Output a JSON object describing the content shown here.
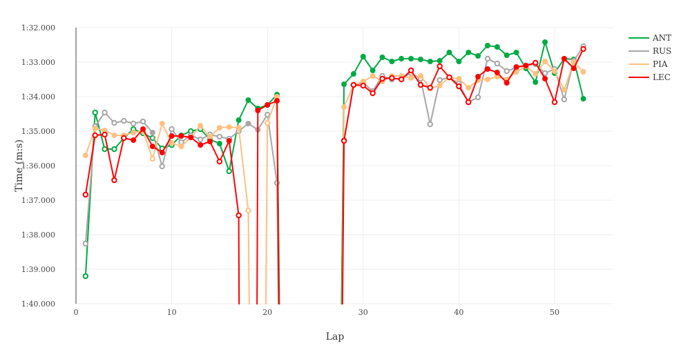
{
  "chart_data": {
    "type": "line",
    "xlabel": "Lap",
    "ylabel": "Time (m:s)",
    "xlim": [
      0,
      56
    ],
    "ylim_seconds": [
      92,
      100
    ],
    "y_reversed": true,
    "x_ticks": [
      "0",
      "10",
      "20",
      "30",
      "40",
      "50"
    ],
    "y_ticks": [
      "1:32.000",
      "1:33.000",
      "1:34.000",
      "1:35.000",
      "1:36.000",
      "1:37.000",
      "1:38.000",
      "1:39.000",
      "1:40.000"
    ],
    "grid": true,
    "legend": "top-right",
    "x": [
      1,
      2,
      3,
      4,
      5,
      6,
      7,
      8,
      9,
      10,
      11,
      12,
      13,
      14,
      15,
      16,
      17,
      18,
      19,
      20,
      21,
      22,
      23,
      24,
      25,
      26,
      27,
      28,
      29,
      30,
      31,
      32,
      33,
      34,
      35,
      36,
      37,
      38,
      39,
      40,
      41,
      42,
      43,
      44,
      45,
      46,
      47,
      48,
      49,
      50,
      51,
      52,
      53
    ],
    "series": [
      {
        "name": "ANT",
        "color": "#00aa44",
        "values": [
          99.2,
          94.46,
          95.52,
          95.52,
          95.2,
          94.94,
          95.06,
          95.2,
          95.5,
          95.4,
          95.12,
          95.0,
          94.94,
          95.24,
          95.36,
          96.16,
          94.68,
          94.1,
          94.34,
          94.24,
          93.94,
          118,
          null,
          null,
          null,
          null,
          118,
          93.64,
          93.34,
          92.84,
          93.24,
          92.86,
          92.98,
          92.9,
          92.9,
          92.92,
          92.98,
          92.96,
          92.72,
          92.98,
          92.72,
          92.82,
          92.52,
          92.56,
          92.8,
          92.72,
          93.18,
          93.58,
          92.42,
          93.32,
          92.9,
          92.92,
          94.06
        ],
        "hollow_laps": [
          1,
          2,
          3,
          4,
          5,
          6,
          7,
          8,
          9,
          10,
          12,
          13,
          16
        ]
      },
      {
        "name": "RUS",
        "color": "#a6a6a6",
        "values": [
          98.26,
          94.86,
          94.46,
          94.76,
          94.7,
          94.78,
          94.72,
          95.04,
          96.02,
          94.94,
          95.32,
          95.12,
          95.24,
          95.1,
          95.16,
          95.22,
          95.0,
          94.78,
          94.96,
          94.52,
          96.5,
          120,
          null,
          null,
          null,
          null,
          120,
          95.26,
          93.66,
          93.6,
          93.84,
          93.4,
          93.5,
          93.46,
          93.32,
          93.48,
          94.8,
          93.52,
          93.44,
          93.62,
          94.16,
          94.02,
          92.9,
          93.04,
          93.26,
          93.16,
          93.1,
          93.06,
          93.32,
          93.2,
          94.08,
          92.96,
          92.54
        ],
        "hollow_laps": [
          1,
          2,
          3,
          4,
          5,
          6,
          7,
          9,
          10,
          11,
          12,
          13,
          14,
          15,
          16,
          17,
          20,
          21,
          28,
          29,
          30,
          31,
          32,
          33,
          34,
          35,
          36,
          37,
          38,
          39,
          40,
          41,
          42,
          43,
          44,
          45,
          46,
          47,
          49,
          50,
          51,
          52,
          53
        ]
      },
      {
        "name": "PIA",
        "color": "#ffc080",
        "values": [
          95.7,
          94.92,
          94.98,
          95.12,
          95.12,
          95.04,
          95.0,
          95.8,
          94.78,
          95.34,
          95.44,
          95.18,
          94.84,
          95.16,
          94.9,
          94.88,
          94.9,
          97.3,
          125,
          94.76,
          94.0,
          125,
          null,
          null,
          null,
          null,
          125,
          94.3,
          93.66,
          93.56,
          93.4,
          93.56,
          93.4,
          93.4,
          93.46,
          93.4,
          93.76,
          93.68,
          93.44,
          93.48,
          93.74,
          93.52,
          93.5,
          93.42,
          93.5,
          93.28,
          93.12,
          93.34,
          92.98,
          93.26,
          93.8,
          93.0,
          93.28
        ],
        "hollow_laps": [
          8,
          18,
          20
        ]
      },
      {
        "name": "LEC",
        "color": "#ff0000",
        "values": [
          96.84,
          95.12,
          95.1,
          96.42,
          95.2,
          95.26,
          94.94,
          95.44,
          95.62,
          95.14,
          95.14,
          95.18,
          95.4,
          95.3,
          95.88,
          95.28,
          97.44,
          160,
          94.4,
          94.24,
          94.12,
          125,
          null,
          null,
          null,
          null,
          125,
          95.28,
          93.66,
          93.68,
          93.9,
          93.48,
          93.46,
          93.5,
          93.24,
          93.66,
          93.74,
          93.12,
          93.44,
          93.7,
          94.16,
          93.42,
          93.2,
          93.3,
          93.6,
          93.14,
          93.1,
          93.02,
          93.48,
          94.16,
          92.9,
          93.18,
          92.62
        ],
        "hollow_laps": [
          1,
          2,
          3,
          4,
          5,
          15,
          17,
          28,
          29,
          30,
          31,
          32,
          33,
          34,
          35,
          36,
          37,
          38,
          39,
          40,
          41,
          48,
          50,
          53
        ]
      }
    ]
  }
}
